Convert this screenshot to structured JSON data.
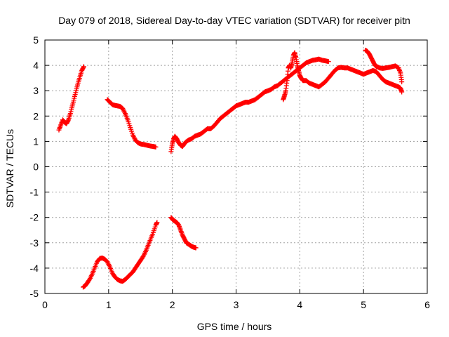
{
  "chart_data": {
    "type": "scatter",
    "title": "Day 079 of 2018, Sidereal Day-to-day VTEC variation (SDTVAR) for receiver pitn",
    "xlabel": "GPS time / hours",
    "ylabel": "SDTVAR / TECUs",
    "xlim": [
      0,
      6
    ],
    "ylim": [
      -5,
      5
    ],
    "xticks": [
      "0",
      "1",
      "2",
      "3",
      "4",
      "5",
      "6"
    ],
    "yticks": [
      "-5",
      "-4",
      "-3",
      "-2",
      "-1",
      "0",
      "1",
      "2",
      "3",
      "4",
      "5"
    ],
    "grid": true,
    "marker": "plus",
    "color": "#ff0000",
    "series": [
      {
        "points": [
          [
            0.22,
            1.45
          ],
          [
            0.25,
            1.65
          ],
          [
            0.28,
            1.85
          ],
          [
            0.31,
            1.75
          ],
          [
            0.34,
            1.7
          ],
          [
            0.37,
            1.85
          ],
          [
            0.4,
            2.1
          ],
          [
            0.43,
            2.4
          ],
          [
            0.46,
            2.7
          ],
          [
            0.49,
            3.0
          ],
          [
            0.52,
            3.3
          ],
          [
            0.55,
            3.55
          ],
          [
            0.58,
            3.8
          ],
          [
            0.61,
            3.95
          ]
        ]
      },
      {
        "points": [
          [
            0.98,
            2.65
          ],
          [
            1.02,
            2.55
          ],
          [
            1.06,
            2.45
          ],
          [
            1.1,
            2.42
          ],
          [
            1.14,
            2.4
          ],
          [
            1.18,
            2.38
          ],
          [
            1.22,
            2.3
          ],
          [
            1.26,
            2.1
          ],
          [
            1.3,
            1.85
          ],
          [
            1.34,
            1.55
          ],
          [
            1.38,
            1.25
          ],
          [
            1.42,
            1.05
          ],
          [
            1.46,
            0.95
          ],
          [
            1.5,
            0.9
          ],
          [
            1.55,
            0.88
          ],
          [
            1.6,
            0.85
          ],
          [
            1.65,
            0.82
          ],
          [
            1.7,
            0.8
          ],
          [
            1.74,
            0.78
          ]
        ]
      },
      {
        "points": [
          [
            1.98,
            0.6
          ],
          [
            2.0,
            0.9
          ],
          [
            2.02,
            1.1
          ],
          [
            2.04,
            1.2
          ],
          [
            2.07,
            1.1
          ],
          [
            2.1,
            0.95
          ],
          [
            2.13,
            0.85
          ],
          [
            2.16,
            0.8
          ],
          [
            2.2,
            0.95
          ],
          [
            2.25,
            1.05
          ],
          [
            2.3,
            1.1
          ],
          [
            2.35,
            1.2
          ],
          [
            2.4,
            1.25
          ],
          [
            2.45,
            1.3
          ],
          [
            2.5,
            1.4
          ],
          [
            2.55,
            1.5
          ],
          [
            2.6,
            1.5
          ],
          [
            2.65,
            1.6
          ],
          [
            2.7,
            1.75
          ],
          [
            2.75,
            1.9
          ],
          [
            2.8,
            2.0
          ],
          [
            2.85,
            2.1
          ],
          [
            2.9,
            2.2
          ],
          [
            2.95,
            2.3
          ],
          [
            3.0,
            2.4
          ],
          [
            3.05,
            2.45
          ],
          [
            3.1,
            2.5
          ],
          [
            3.15,
            2.55
          ],
          [
            3.2,
            2.55
          ],
          [
            3.25,
            2.6
          ],
          [
            3.3,
            2.65
          ],
          [
            3.35,
            2.75
          ],
          [
            3.4,
            2.85
          ],
          [
            3.45,
            2.95
          ],
          [
            3.5,
            3.0
          ],
          [
            3.55,
            3.05
          ],
          [
            3.6,
            3.15
          ],
          [
            3.65,
            3.2
          ],
          [
            3.7,
            3.3
          ],
          [
            3.75,
            3.4
          ],
          [
            3.8,
            3.5
          ],
          [
            3.85,
            3.6
          ],
          [
            3.9,
            3.7
          ],
          [
            3.95,
            3.8
          ],
          [
            4.0,
            3.9
          ],
          [
            4.05,
            4.0
          ],
          [
            4.1,
            4.1
          ],
          [
            4.15,
            4.15
          ],
          [
            4.2,
            4.2
          ],
          [
            4.25,
            4.22
          ],
          [
            4.3,
            4.25
          ],
          [
            4.35,
            4.2
          ],
          [
            4.4,
            4.18
          ],
          [
            4.45,
            4.15
          ]
        ]
      },
      {
        "points": [
          [
            3.74,
            2.65
          ],
          [
            3.76,
            2.8
          ],
          [
            3.78,
            3.0
          ],
          [
            3.8,
            3.4
          ],
          [
            3.82,
            3.9
          ],
          [
            3.84,
            4.0
          ],
          [
            3.86,
            3.9
          ],
          [
            3.88,
            4.1
          ],
          [
            3.9,
            4.4
          ],
          [
            3.92,
            4.5
          ],
          [
            3.94,
            4.3
          ],
          [
            3.96,
            4.0
          ],
          [
            3.98,
            3.8
          ],
          [
            4.0,
            3.6
          ],
          [
            4.02,
            3.5
          ],
          [
            4.05,
            3.4
          ],
          [
            4.1,
            3.4
          ],
          [
            4.15,
            3.3
          ],
          [
            4.2,
            3.25
          ],
          [
            4.25,
            3.2
          ],
          [
            4.3,
            3.15
          ],
          [
            4.35,
            3.25
          ],
          [
            4.4,
            3.35
          ],
          [
            4.45,
            3.5
          ],
          [
            4.5,
            3.65
          ],
          [
            4.55,
            3.8
          ],
          [
            4.6,
            3.9
          ],
          [
            4.65,
            3.92
          ],
          [
            4.7,
            3.9
          ],
          [
            4.75,
            3.9
          ],
          [
            4.8,
            3.85
          ],
          [
            4.85,
            3.8
          ],
          [
            4.9,
            3.75
          ],
          [
            4.95,
            3.7
          ],
          [
            5.0,
            3.65
          ],
          [
            5.05,
            3.7
          ],
          [
            5.1,
            3.75
          ],
          [
            5.15,
            3.8
          ],
          [
            5.2,
            3.75
          ],
          [
            5.25,
            3.6
          ],
          [
            5.3,
            3.45
          ],
          [
            5.35,
            3.35
          ],
          [
            5.4,
            3.3
          ],
          [
            5.45,
            3.25
          ],
          [
            5.5,
            3.2
          ],
          [
            5.55,
            3.15
          ],
          [
            5.58,
            3.1
          ],
          [
            5.6,
            2.95
          ]
        ]
      },
      {
        "points": [
          [
            5.03,
            4.6
          ],
          [
            5.06,
            4.55
          ],
          [
            5.09,
            4.45
          ],
          [
            5.12,
            4.3
          ],
          [
            5.15,
            4.15
          ],
          [
            5.18,
            4.0
          ],
          [
            5.21,
            3.95
          ],
          [
            5.25,
            3.9
          ],
          [
            5.3,
            3.88
          ],
          [
            5.35,
            3.9
          ],
          [
            5.4,
            3.92
          ],
          [
            5.45,
            3.95
          ],
          [
            5.5,
            3.98
          ],
          [
            5.55,
            3.9
          ],
          [
            5.58,
            3.7
          ],
          [
            5.6,
            3.35
          ]
        ]
      },
      {
        "points": [
          [
            0.6,
            -4.75
          ],
          [
            0.63,
            -4.7
          ],
          [
            0.66,
            -4.6
          ],
          [
            0.7,
            -4.45
          ],
          [
            0.74,
            -4.25
          ],
          [
            0.78,
            -4.0
          ],
          [
            0.82,
            -3.75
          ],
          [
            0.86,
            -3.62
          ],
          [
            0.9,
            -3.6
          ],
          [
            0.94,
            -3.65
          ],
          [
            0.98,
            -3.75
          ],
          [
            1.02,
            -3.95
          ],
          [
            1.06,
            -4.2
          ],
          [
            1.1,
            -4.35
          ],
          [
            1.14,
            -4.45
          ],
          [
            1.18,
            -4.5
          ],
          [
            1.22,
            -4.52
          ],
          [
            1.26,
            -4.45
          ],
          [
            1.3,
            -4.35
          ],
          [
            1.34,
            -4.25
          ],
          [
            1.38,
            -4.15
          ],
          [
            1.42,
            -4.0
          ],
          [
            1.46,
            -3.85
          ],
          [
            1.5,
            -3.7
          ],
          [
            1.54,
            -3.55
          ],
          [
            1.58,
            -3.35
          ],
          [
            1.62,
            -3.1
          ],
          [
            1.66,
            -2.85
          ],
          [
            1.7,
            -2.6
          ],
          [
            1.74,
            -2.3
          ],
          [
            1.76,
            -2.2
          ]
        ]
      },
      {
        "points": [
          [
            1.98,
            -2.0
          ],
          [
            2.01,
            -2.1
          ],
          [
            2.04,
            -2.15
          ],
          [
            2.07,
            -2.2
          ],
          [
            2.1,
            -2.3
          ],
          [
            2.13,
            -2.5
          ],
          [
            2.16,
            -2.7
          ],
          [
            2.19,
            -2.85
          ],
          [
            2.22,
            -3.0
          ],
          [
            2.25,
            -3.05
          ],
          [
            2.28,
            -3.1
          ],
          [
            2.31,
            -3.15
          ],
          [
            2.34,
            -3.18
          ],
          [
            2.37,
            -3.2
          ]
        ]
      }
    ]
  }
}
